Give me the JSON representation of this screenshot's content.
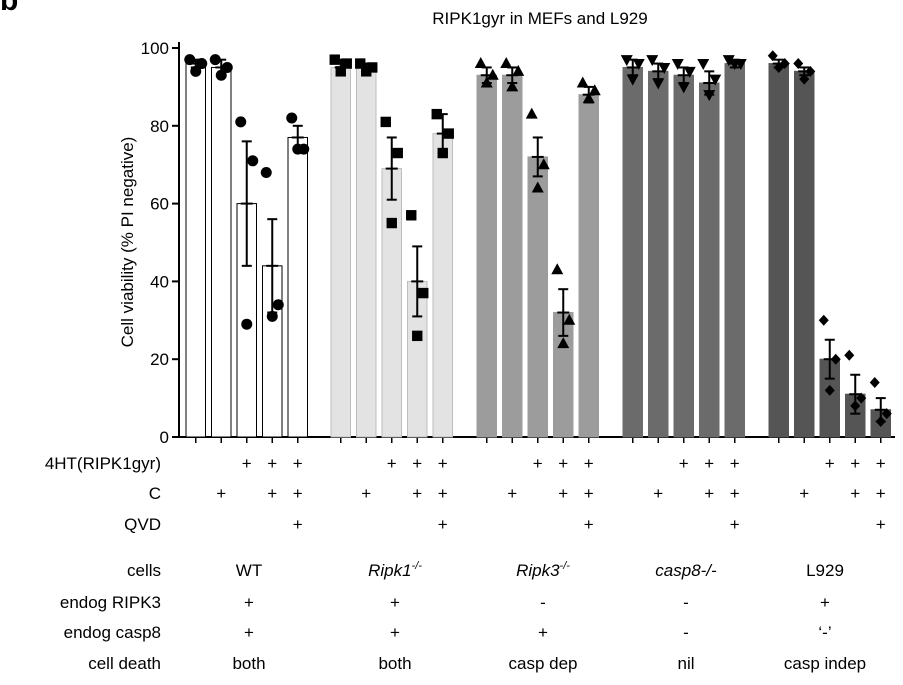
{
  "panel_label": "b",
  "chart_data": {
    "type": "bar",
    "title": "RIPK1gyr in MEFs and L929",
    "ylabel": "Cell viability (% PI negative)",
    "ylim": [
      0,
      100
    ],
    "yticks": [
      "0",
      "20",
      "40",
      "60",
      "80",
      "100"
    ],
    "treatment_rows": [
      {
        "label": "4HT(RIPK1gyr)",
        "values": [
          "",
          "",
          "+",
          "+",
          "+"
        ]
      },
      {
        "label": "C",
        "values": [
          "",
          "+",
          "",
          "+",
          "+"
        ]
      },
      {
        "label": "QVD",
        "values": [
          "",
          "",
          "",
          "",
          "+"
        ]
      }
    ],
    "groups": [
      {
        "cells": "WT",
        "endog_RIPK3": "+",
        "endog_casp8": "+",
        "cell_death": "both",
        "marker": "circle",
        "color": "#ffffff",
        "means": [
          96,
          95,
          60,
          44,
          77
        ],
        "sem": [
          1,
          2,
          16,
          12,
          3
        ],
        "points": [
          [
            97,
            96,
            94
          ],
          [
            97,
            95,
            93
          ],
          [
            81,
            71,
            29
          ],
          [
            68,
            34,
            31
          ],
          [
            82,
            74,
            74
          ]
        ]
      },
      {
        "cells": "Ripk1",
        "cells_superscript": "-/-",
        "endog_RIPK3": "+",
        "endog_casp8": "+",
        "cell_death": "both",
        "marker": "square",
        "color": "#e3e3e3",
        "means": [
          95,
          95,
          69,
          40,
          78
        ],
        "sem": [
          2,
          1,
          8,
          9,
          5
        ],
        "points": [
          [
            97,
            96,
            94
          ],
          [
            96,
            95,
            94
          ],
          [
            81,
            73,
            55
          ],
          [
            57,
            37,
            26
          ],
          [
            83,
            78,
            73
          ]
        ]
      },
      {
        "cells": "Ripk3",
        "cells_superscript": "-/-",
        "endog_RIPK3": "-",
        "endog_casp8": "+",
        "cell_death": "casp dep",
        "marker": "triangle",
        "color": "#9c9c9c",
        "means": [
          93,
          93,
          72,
          32,
          88
        ],
        "sem": [
          2,
          2,
          5,
          6,
          2
        ],
        "points": [
          [
            96,
            93,
            91
          ],
          [
            96,
            94,
            90
          ],
          [
            83,
            70,
            64
          ],
          [
            43,
            30,
            24
          ],
          [
            91,
            89,
            87
          ]
        ]
      },
      {
        "cells": "casp8-/-",
        "endog_RIPK3": "-",
        "endog_casp8": "-",
        "cell_death": "nil",
        "marker": "triangle-down",
        "color": "#6b6b6b",
        "means": [
          95,
          94,
          93,
          91,
          96
        ],
        "sem": [
          2,
          2,
          2,
          3,
          1
        ],
        "points": [
          [
            97,
            96,
            92
          ],
          [
            97,
            95,
            91
          ],
          [
            96,
            94,
            90
          ],
          [
            96,
            92,
            88
          ],
          [
            97,
            96,
            96
          ]
        ]
      },
      {
        "cells": "L929",
        "endog_RIPK3": "+",
        "endog_casp8": "‘-’",
        "cell_death": "casp indep",
        "marker": "diamond",
        "color": "#555555",
        "means": [
          96,
          94,
          20,
          11,
          7
        ],
        "sem": [
          1,
          1,
          5,
          5,
          3
        ],
        "points": [
          [
            98,
            96,
            95
          ],
          [
            96,
            94,
            92
          ],
          [
            30,
            20,
            12
          ],
          [
            21,
            10,
            8
          ],
          [
            14,
            6,
            4
          ]
        ]
      }
    ],
    "info_rows": [
      {
        "label": "cells",
        "key": "cells"
      },
      {
        "label": "endog RIPK3",
        "key": "endog_RIPK3"
      },
      {
        "label": "endog casp8",
        "key": "endog_casp8"
      },
      {
        "label": "cell death",
        "key": "cell_death"
      }
    ]
  }
}
